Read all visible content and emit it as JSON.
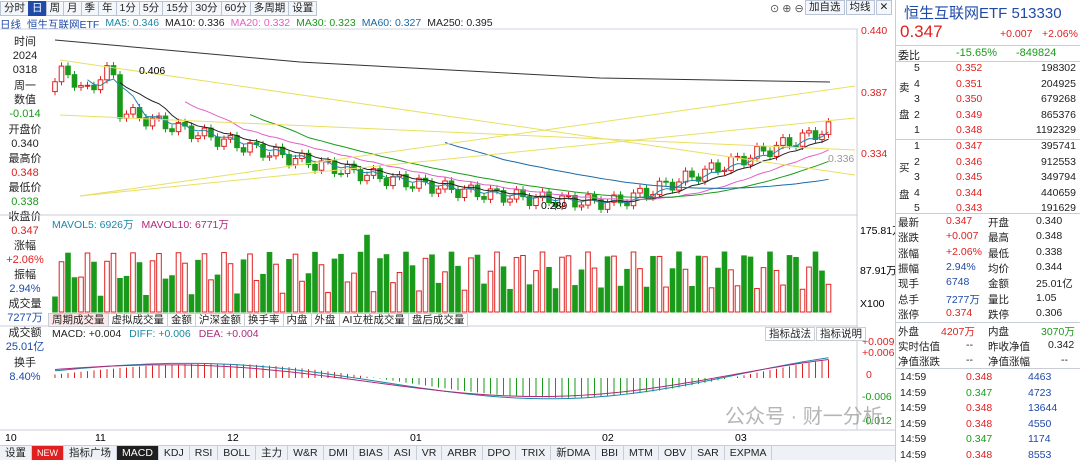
{
  "toolbar": {
    "tabs": [
      "分时",
      "日",
      "周",
      "月",
      "季",
      "年",
      "1分",
      "5分",
      "15分",
      "30分",
      "60分",
      "多周期",
      "设置"
    ],
    "active": "日",
    "right_buttons": [
      "加自选",
      "均线"
    ]
  },
  "ma_bar": {
    "period": "日线",
    "name": "恒生互联网ETF",
    "ma5": "MA5: 0.346",
    "ma10": "MA10: 0.336",
    "ma20": "MA20: 0.332",
    "ma30": "MA30: 0.323",
    "ma60": "MA60: 0.327",
    "ma250": "MA250: 0.395"
  },
  "left_panel": {
    "time_label": "时间",
    "year": "2024",
    "date": "0318",
    "weekday_label": "周一",
    "value_label": "数值",
    "value": "-0.014",
    "open_label": "开盘价",
    "open": "0.340",
    "high_label": "最高价",
    "high": "0.348",
    "low_label": "最低价",
    "low": "0.338",
    "close_label": "收盘价",
    "close": "0.347",
    "change_label": "涨幅",
    "change": "+2.06%",
    "amp_label": "振幅",
    "amp": "2.94%",
    "vol_label": "成交量",
    "vol": "7277万",
    "amt_label": "成交额",
    "amt": "25.01亿",
    "turn_label": "换手",
    "turn": "8.40%"
  },
  "price_axis": {
    "ticks": [
      "0.440",
      "0.387",
      "0.334"
    ],
    "annot_high": "0.406",
    "annot_low": "0.289",
    "cur": "0.336"
  },
  "vol_bar": {
    "mavol5": "MAVOL5: 6926万",
    "mavol10": "MAVOL10: 6771万",
    "ticks": [
      "175.81万",
      "87.91万"
    ],
    "unit": "X100"
  },
  "bottom_tabs": [
    "周期成交量",
    "虚拟成交量",
    "金额",
    "沪深金额",
    "换手率",
    "内盘",
    "外盘",
    "AI立桩成交量",
    "盘后成交量"
  ],
  "macd_bar": {
    "macd": "MACD: +0.004",
    "diff": "DIFF: +0.006",
    "dea": "DEA: +0.004",
    "btn1": "指标战法",
    "btn2": "指标说明",
    "ticks": [
      "+0.009",
      "+0.006",
      "0",
      "-0.006",
      "-0.012"
    ]
  },
  "x_axis": [
    "10",
    "11",
    "12",
    "01",
    "02",
    "03"
  ],
  "indicator_tabs": [
    "设置",
    "NEW",
    "指标广场",
    "MACD",
    "KDJ",
    "RSI",
    "BOLL",
    "主力",
    "W&R",
    "DMI",
    "BIAS",
    "ASI",
    "VR",
    "ARBR",
    "DPO",
    "TRIX",
    "新DMA",
    "BBI",
    "MTM",
    "OBV",
    "SAR",
    "EXPMA"
  ],
  "indicator_active": "MACD",
  "quote": {
    "title": "恒生互联网ETF 513330",
    "price": "0.347",
    "chg": "+0.007",
    "pct": "+2.06%",
    "webi_label": "委比",
    "webi": "-15.65%",
    "wecha": "-849824",
    "sell_label": [
      "卖",
      "盘"
    ],
    "buy_label": [
      "买",
      "盘"
    ],
    "sells": [
      {
        "n": "5",
        "p": "0.352",
        "v": "198302"
      },
      {
        "n": "4",
        "p": "0.351",
        "v": "204925"
      },
      {
        "n": "3",
        "p": "0.350",
        "v": "679268"
      },
      {
        "n": "2",
        "p": "0.349",
        "v": "865376"
      },
      {
        "n": "1",
        "p": "0.348",
        "v": "1192329"
      }
    ],
    "buys": [
      {
        "n": "1",
        "p": "0.347",
        "v": "395741"
      },
      {
        "n": "2",
        "p": "0.346",
        "v": "912553"
      },
      {
        "n": "3",
        "p": "0.345",
        "v": "349794"
      },
      {
        "n": "4",
        "p": "0.344",
        "v": "440659"
      },
      {
        "n": "5",
        "p": "0.343",
        "v": "191629"
      }
    ],
    "stats": [
      [
        "最新",
        "0.347",
        "开盘",
        "0.340"
      ],
      [
        "涨跌",
        "+0.007",
        "最高",
        "0.348"
      ],
      [
        "涨幅",
        "+2.06%",
        "最低",
        "0.338"
      ],
      [
        "振幅",
        "2.94%",
        "均价",
        "0.344"
      ],
      [
        "现手",
        "6748",
        "金额",
        "25.01亿"
      ],
      [
        "总手",
        "7277万",
        "量比",
        "1.05"
      ],
      [
        "涨停",
        "0.374",
        "跌停",
        "0.306"
      ]
    ],
    "outer_label": "外盘",
    "outer": "4207万",
    "inner_label": "内盘",
    "inner": "3070万",
    "est_label": "实时估值",
    "est": "--",
    "prevnav_label": "昨收净值",
    "prevnav": "0.342",
    "navchg_label": "净值涨跌",
    "navchg": "--",
    "navpct_label": "净值涨幅",
    "navpct": "--",
    "ticks": [
      [
        "14:59",
        "0.348",
        "4463"
      ],
      [
        "14:59",
        "0.347",
        "4723"
      ],
      [
        "14:59",
        "0.348",
        "13644"
      ],
      [
        "14:59",
        "0.348",
        "4550"
      ],
      [
        "14:59",
        "0.347",
        "1174"
      ],
      [
        "14:59",
        "0.348",
        "8553"
      ]
    ]
  },
  "watermark": "公众号 · 财一分析"
}
